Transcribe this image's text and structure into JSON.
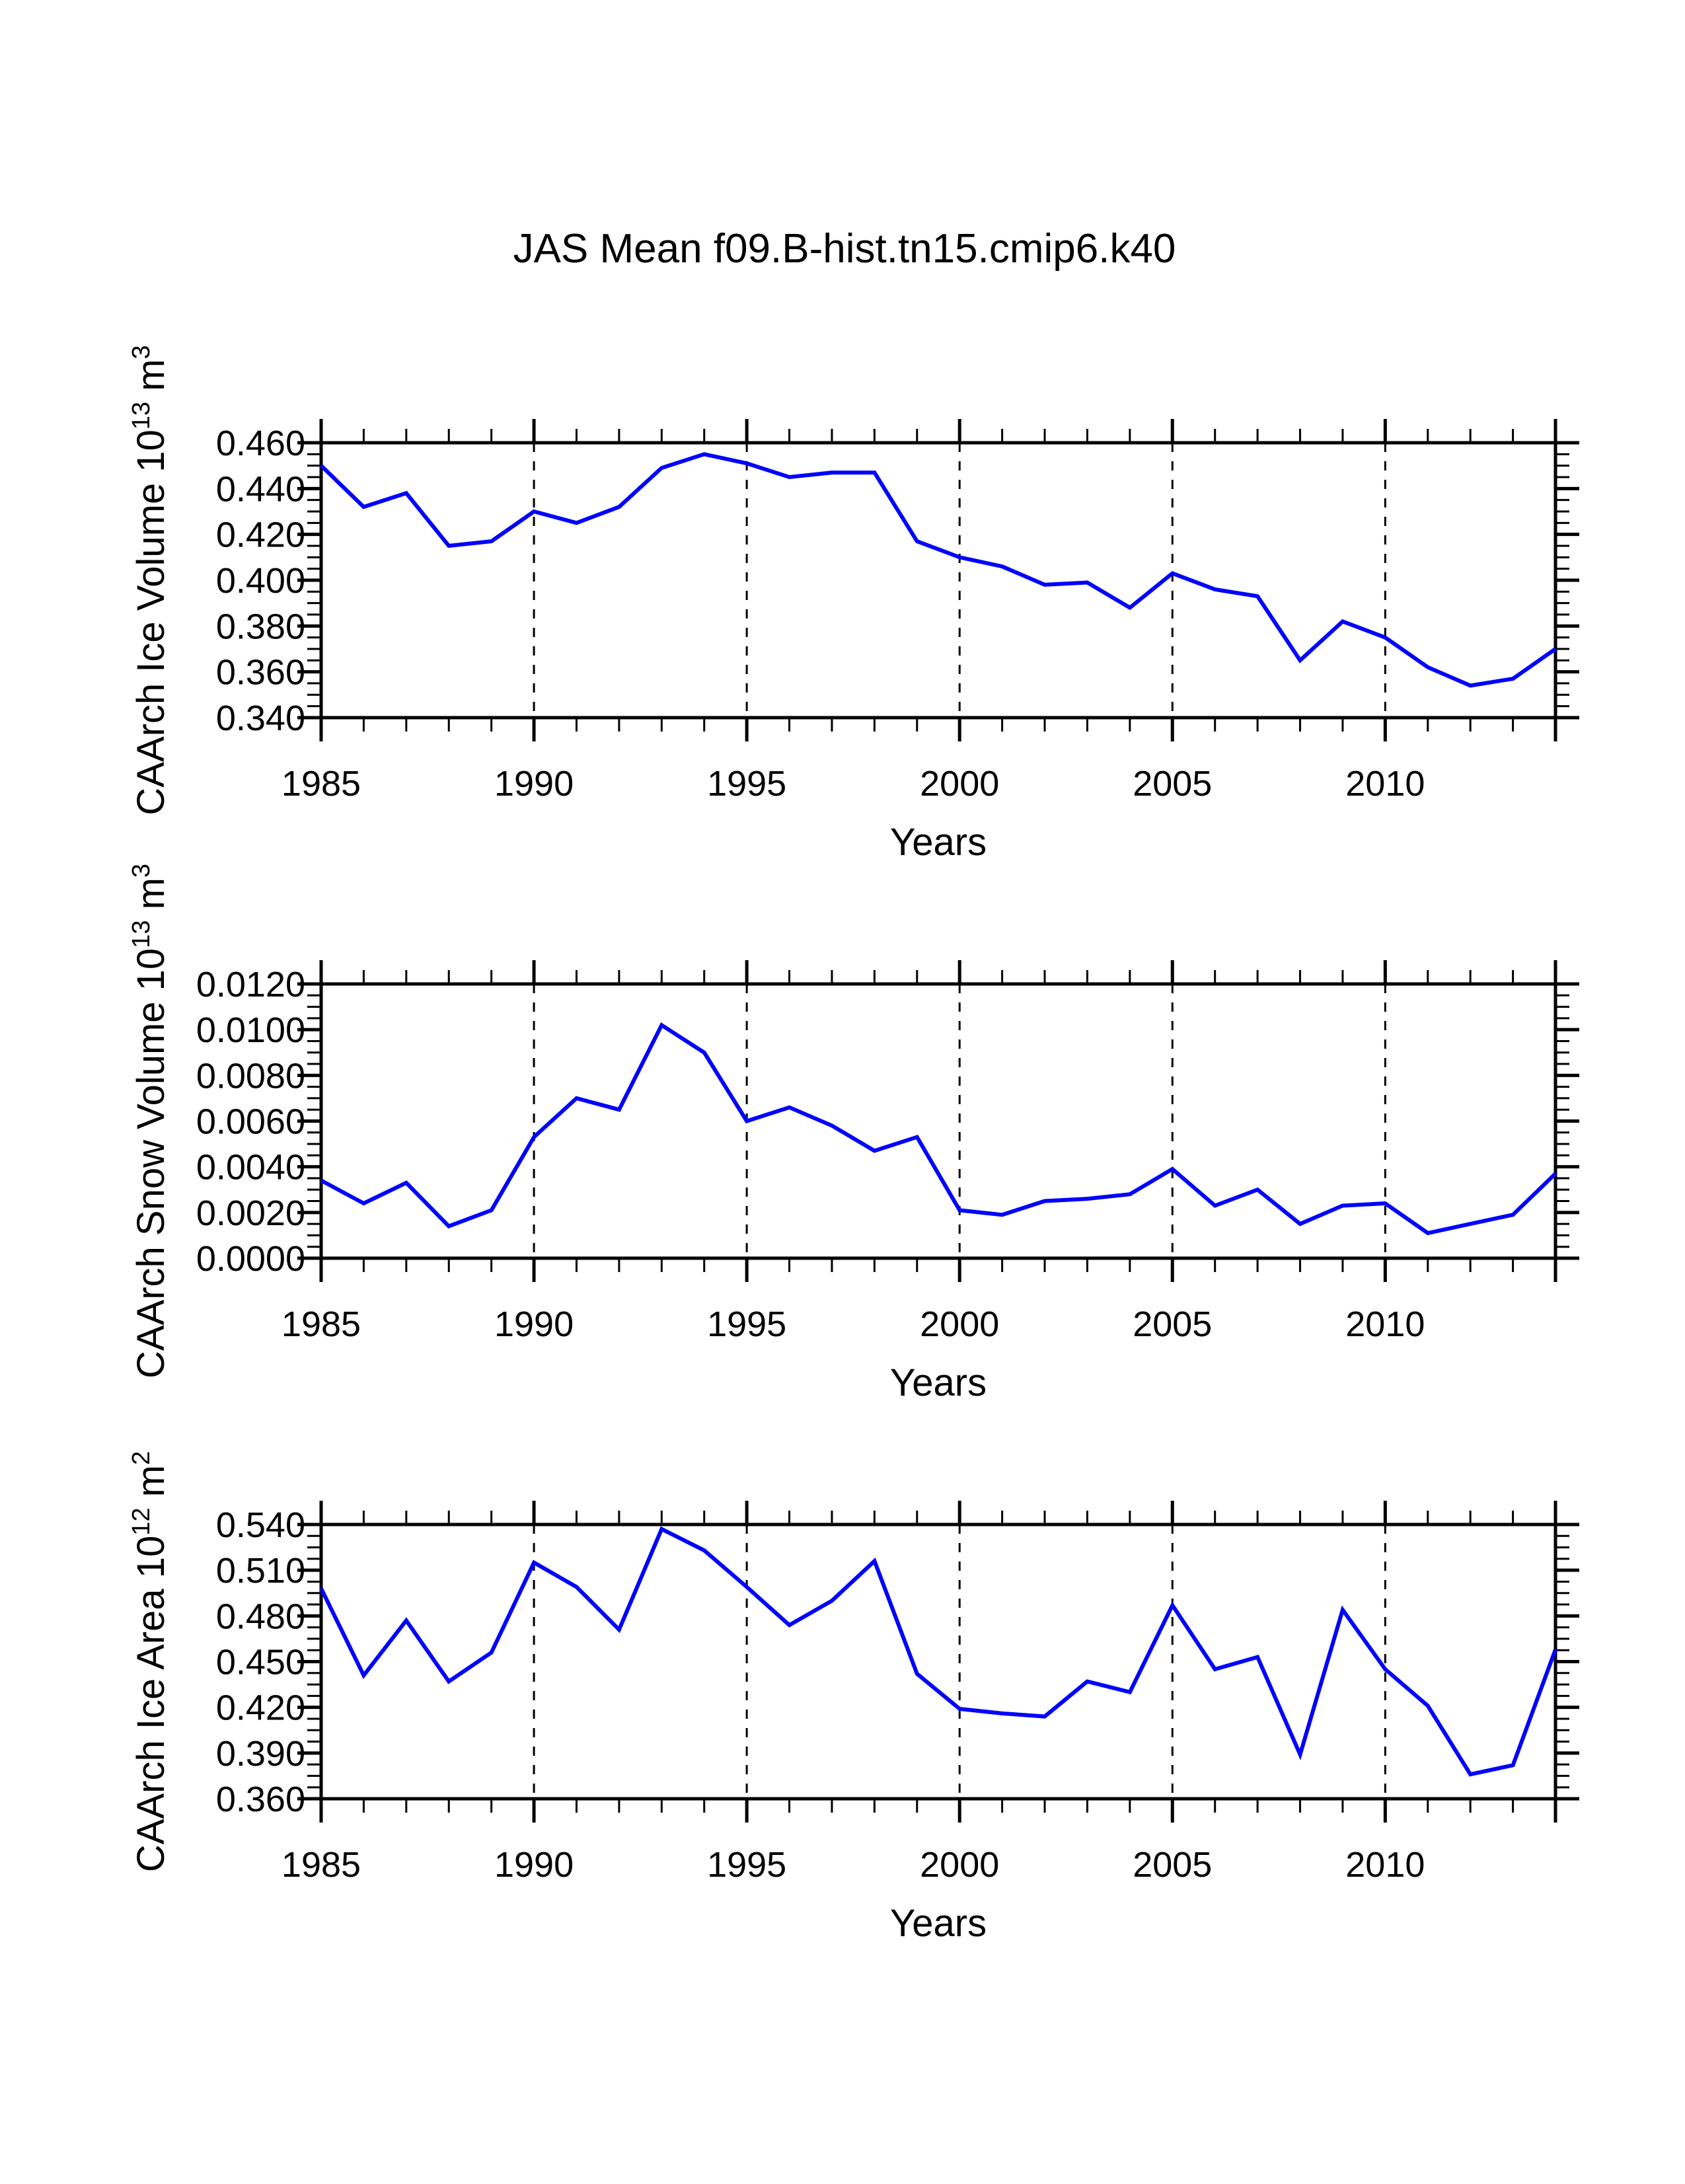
{
  "title": "JAS Mean f09.B-hist.tn15.cmip6.k40",
  "x_axis_label": "Years",
  "colors": {
    "line": "#0000ff",
    "axis": "#000000",
    "grid": "#000000",
    "background": "#ffffff"
  },
  "x_tick_labels": [
    "1985",
    "1990",
    "1995",
    "2000",
    "2005",
    "2010"
  ],
  "chart_data": [
    {
      "type": "line",
      "name": "ice-volume",
      "ylabel_parts": {
        "prefix": "CAArch Ice Volume 10",
        "exp": "13",
        "unit": " m",
        "unit_exp": "3"
      },
      "xlabel": "Years",
      "x": [
        1985,
        1986,
        1987,
        1988,
        1989,
        1990,
        1991,
        1992,
        1993,
        1994,
        1995,
        1996,
        1997,
        1998,
        1999,
        2000,
        2001,
        2002,
        2003,
        2004,
        2005,
        2006,
        2007,
        2008,
        2009,
        2010,
        2011,
        2012,
        2013,
        2014
      ],
      "values": [
        0.45,
        0.432,
        0.438,
        0.415,
        0.417,
        0.43,
        0.425,
        0.432,
        0.449,
        0.455,
        0.451,
        0.445,
        0.447,
        0.447,
        0.417,
        0.41,
        0.406,
        0.398,
        0.399,
        0.388,
        0.403,
        0.396,
        0.393,
        0.365,
        0.382,
        0.375,
        0.362,
        0.354,
        0.357,
        0.37
      ],
      "ylim": [
        0.34,
        0.46
      ],
      "y_major": 0.02,
      "y_minor": 0.005,
      "y_decimals": 3,
      "y_tick_labels": [
        "0.340",
        "0.360",
        "0.380",
        "0.400",
        "0.420",
        "0.440",
        "0.460"
      ],
      "xlim": [
        1985,
        2014
      ],
      "x_major": [
        1985,
        1990,
        1995,
        2000,
        2005,
        2010
      ],
      "gridlines_x": [
        1990,
        1995,
        2000,
        2005,
        2010
      ],
      "grid": "vertical-dashed",
      "legend": "none"
    },
    {
      "type": "line",
      "name": "snow-volume",
      "ylabel_parts": {
        "prefix": "CAArch Snow Volume 10",
        "exp": "13",
        "unit": " m",
        "unit_exp": "3"
      },
      "xlabel": "Years",
      "x": [
        1985,
        1986,
        1987,
        1988,
        1989,
        1990,
        1991,
        1992,
        1993,
        1994,
        1995,
        1996,
        1997,
        1998,
        1999,
        2000,
        2001,
        2002,
        2003,
        2004,
        2005,
        2006,
        2007,
        2008,
        2009,
        2010,
        2011,
        2012,
        2013,
        2014
      ],
      "values": [
        0.0034,
        0.0024,
        0.0033,
        0.0014,
        0.0021,
        0.0053,
        0.007,
        0.0065,
        0.0102,
        0.009,
        0.006,
        0.0066,
        0.0058,
        0.0047,
        0.0053,
        0.0021,
        0.0019,
        0.0025,
        0.0026,
        0.0028,
        0.0039,
        0.0023,
        0.003,
        0.0015,
        0.0023,
        0.0024,
        0.0011,
        0.0015,
        0.0019,
        0.0037
      ],
      "ylim": [
        0.0,
        0.012
      ],
      "y_major": 0.002,
      "y_minor": 0.0005,
      "y_decimals": 4,
      "y_tick_labels": [
        "0.0000",
        "0.0020",
        "0.0040",
        "0.0060",
        "0.0080",
        "0.0100",
        "0.0120"
      ],
      "xlim": [
        1985,
        2014
      ],
      "x_major": [
        1985,
        1990,
        1995,
        2000,
        2005,
        2010
      ],
      "gridlines_x": [
        1990,
        1995,
        2000,
        2005,
        2010
      ],
      "grid": "vertical-dashed",
      "legend": "none"
    },
    {
      "type": "line",
      "name": "ice-area",
      "ylabel_parts": {
        "prefix": "CAArch Ice Area 10",
        "exp": "12",
        "unit": " m",
        "unit_exp": "2"
      },
      "xlabel": "Years",
      "x": [
        1985,
        1986,
        1987,
        1988,
        1989,
        1990,
        1991,
        1992,
        1993,
        1994,
        1995,
        1996,
        1997,
        1998,
        1999,
        2000,
        2001,
        2002,
        2003,
        2004,
        2005,
        2006,
        2007,
        2008,
        2009,
        2010,
        2011,
        2012,
        2013,
        2014
      ],
      "values": [
        0.498,
        0.441,
        0.477,
        0.437,
        0.456,
        0.515,
        0.499,
        0.471,
        0.537,
        0.523,
        0.499,
        0.474,
        0.49,
        0.516,
        0.442,
        0.419,
        0.416,
        0.414,
        0.437,
        0.43,
        0.487,
        0.445,
        0.453,
        0.389,
        0.484,
        0.445,
        0.421,
        0.376,
        0.382,
        0.458
      ],
      "ylim": [
        0.36,
        0.54
      ],
      "y_major": 0.03,
      "y_minor": 0.0075,
      "y_decimals": 3,
      "y_tick_labels": [
        "0.360",
        "0.390",
        "0.420",
        "0.450",
        "0.480",
        "0.510",
        "0.540"
      ],
      "xlim": [
        1985,
        2014
      ],
      "x_major": [
        1985,
        1990,
        1995,
        2000,
        2005,
        2010
      ],
      "gridlines_x": [
        1990,
        1995,
        2000,
        2005,
        2010
      ],
      "grid": "vertical-dashed",
      "legend": "none"
    }
  ]
}
